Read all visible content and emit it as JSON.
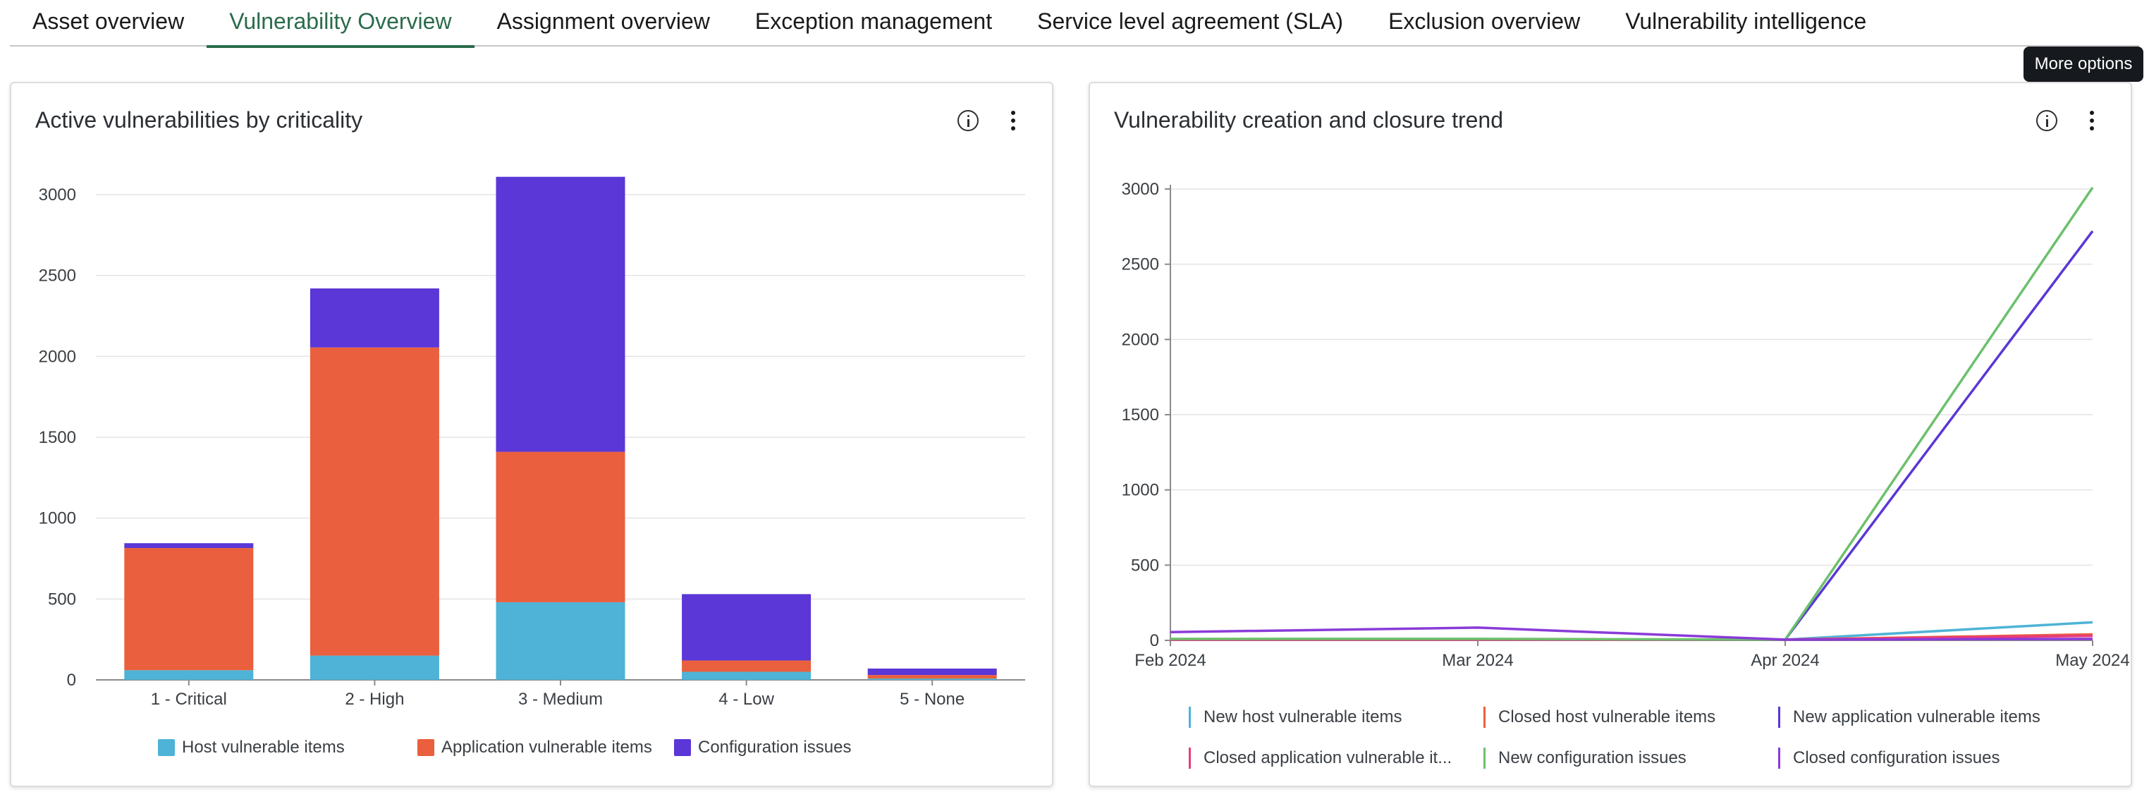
{
  "tabs": [
    {
      "label": "Asset overview",
      "active": false
    },
    {
      "label": "Vulnerability Overview",
      "active": true
    },
    {
      "label": "Assignment overview",
      "active": false
    },
    {
      "label": "Exception management",
      "active": false
    },
    {
      "label": "Service level agreement (SLA)",
      "active": false
    },
    {
      "label": "Exclusion overview",
      "active": false
    },
    {
      "label": "Vulnerability intelligence",
      "active": false
    }
  ],
  "tooltip": {
    "text": "More options"
  },
  "colors": {
    "accent": "#2a6b4b",
    "host": "#4eb3d6",
    "application": "#ea5f3d",
    "configuration": "#5a37d6",
    "closed_application": "#e83b7e",
    "new_configuration": "#6cc06c",
    "closed_configuration": "#8a3bd8"
  },
  "left_card": {
    "title": "Active vulnerabilities by criticality",
    "info_icon": "info-icon",
    "more_icon": "more-vertical-icon"
  },
  "right_card": {
    "title": "Vulnerability creation and closure trend",
    "info_icon": "info-icon",
    "more_icon": "more-vertical-icon"
  },
  "chart_data": [
    {
      "type": "bar",
      "stacked": true,
      "title": "Active vulnerabilities by criticality",
      "categories": [
        "1 - Critical",
        "2 - High",
        "3 - Medium",
        "4 - Low",
        "5 - None"
      ],
      "ylim": [
        0,
        3100
      ],
      "yticks": [
        0,
        500,
        1000,
        1500,
        2000,
        2500,
        3000
      ],
      "grid": true,
      "legend_position": "bottom",
      "series": [
        {
          "name": "Host vulnerable items",
          "color": "#4eb3d6",
          "values": [
            60,
            150,
            480,
            50,
            8
          ]
        },
        {
          "name": "Application vulnerable items",
          "color": "#ea5f3d",
          "values": [
            755,
            1905,
            930,
            70,
            22
          ]
        },
        {
          "name": "Configuration issues",
          "color": "#5a37d6",
          "values": [
            30,
            365,
            1700,
            410,
            40
          ]
        }
      ]
    },
    {
      "type": "line",
      "title": "Vulnerability creation and closure trend",
      "x": [
        "Feb 2024",
        "Mar 2024",
        "Apr 2024",
        "May 2024"
      ],
      "ylim": [
        0,
        3000
      ],
      "yticks": [
        0,
        500,
        1000,
        1500,
        2000,
        2500,
        3000
      ],
      "grid": true,
      "legend_position": "bottom",
      "series": [
        {
          "name": "New host vulnerable items",
          "color": "#4eb3d6",
          "values": [
            5,
            5,
            5,
            120
          ]
        },
        {
          "name": "Closed host vulnerable items",
          "color": "#ea5f3d",
          "values": [
            5,
            5,
            5,
            40
          ]
        },
        {
          "name": "New application vulnerable items",
          "color": "#5a37d6",
          "values": [
            5,
            5,
            5,
            2720
          ]
        },
        {
          "name": "Closed application vulnerable it...",
          "color": "#e83b7e",
          "values": [
            5,
            5,
            5,
            30
          ]
        },
        {
          "name": "New configuration issues",
          "color": "#6cc06c",
          "values": [
            10,
            10,
            5,
            3010
          ]
        },
        {
          "name": "Closed configuration issues",
          "color": "#8a3bd8",
          "values": [
            55,
            85,
            5,
            10
          ]
        }
      ]
    }
  ]
}
